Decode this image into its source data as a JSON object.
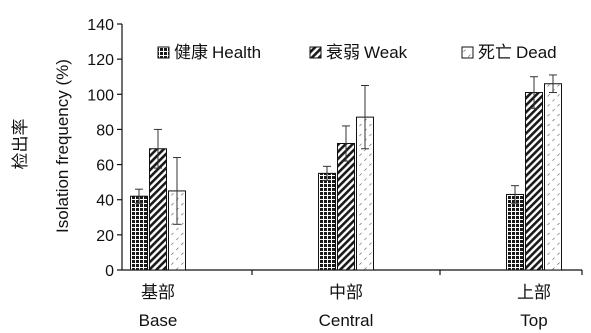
{
  "chart_data": {
    "type": "bar",
    "categories": [
      {
        "cn": "基部",
        "en": "Base"
      },
      {
        "cn": "中部",
        "en": "Central"
      },
      {
        "cn": "上部",
        "en": "Top"
      }
    ],
    "series": [
      {
        "name_cn": "健康",
        "name_en": "Health",
        "pattern": "dots",
        "values": [
          42,
          55,
          43
        ],
        "errors": [
          4,
          4,
          5
        ]
      },
      {
        "name_cn": "衰弱",
        "name_en": "Weak",
        "pattern": "hatch",
        "values": [
          69,
          72,
          101
        ],
        "errors": [
          11,
          10,
          9
        ]
      },
      {
        "name_cn": "死亡",
        "name_en": "Dead",
        "pattern": "light",
        "values": [
          45,
          87,
          106
        ],
        "errors": [
          19,
          18,
          5
        ]
      }
    ],
    "ylabel_en": "Isolation frequency (%)",
    "ylabel_cn": "检出率",
    "ylim": [
      0,
      140
    ],
    "yticks": [
      "0",
      "20",
      "40",
      "60",
      "80",
      "100",
      "120",
      "140"
    ],
    "legend_placement": "top-right",
    "grid": false
  }
}
